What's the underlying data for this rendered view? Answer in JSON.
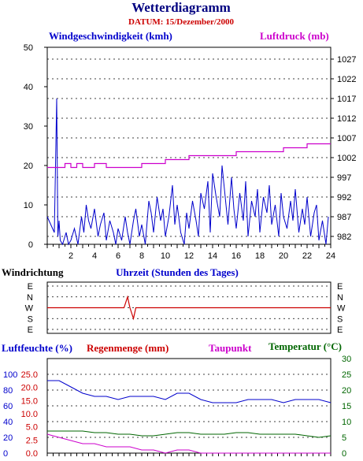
{
  "title": "Wetterdiagramm",
  "subtitle": "DATUM: 15/Dezember/2000",
  "colors": {
    "wind": "#0000cc",
    "pressure": "#cc00cc",
    "direction": "#cc0000",
    "humidity": "#0000cc",
    "rain": "#cc0000",
    "dewpoint": "#cc00cc",
    "temperature": "#006600",
    "grid": "#000000"
  },
  "chart_data": [
    {
      "type": "line",
      "name_left": "Windgeschwindigkeit (kmh)",
      "name_right": "Luftdruck (mb)",
      "xlabel": "Uhrzeit (Stunden des Tages)",
      "x_ticks": [
        "2",
        "4",
        "6",
        "8",
        "10",
        "12",
        "14",
        "16",
        "18",
        "20",
        "22",
        "24"
      ],
      "xlim": [
        0,
        24
      ],
      "y_left_ticks": [
        "0",
        "10",
        "20",
        "30",
        "40",
        "50"
      ],
      "ylim_left": [
        0,
        50
      ],
      "y_right_ticks": [
        "982",
        "987",
        "992",
        "997",
        "1002",
        "1007",
        "1012",
        "1017",
        "1022",
        "1027"
      ],
      "ylim_right": [
        980,
        1030
      ],
      "grid": true,
      "series": [
        {
          "name": "Windgeschwindigkeit (kmh)",
          "axis": "left",
          "x": [
            0,
            0.3,
            0.6,
            0.8,
            0.9,
            1.0,
            1.1,
            1.3,
            1.6,
            1.8,
            2.0,
            2.3,
            2.6,
            2.9,
            3.1,
            3.3,
            3.5,
            3.7,
            4.0,
            4.3,
            4.5,
            4.8,
            5.0,
            5.3,
            5.6,
            5.8,
            6.0,
            6.3,
            6.6,
            6.8,
            7.0,
            7.3,
            7.5,
            7.8,
            8.0,
            8.3,
            8.6,
            8.8,
            9.0,
            9.3,
            9.6,
            9.8,
            10.0,
            10.3,
            10.6,
            10.8,
            11.0,
            11.3,
            11.6,
            11.8,
            12.0,
            12.3,
            12.6,
            12.8,
            13.0,
            13.3,
            13.6,
            13.8,
            14.0,
            14.3,
            14.6,
            14.8,
            15.0,
            15.3,
            15.6,
            15.8,
            16.0,
            16.3,
            16.6,
            16.8,
            17.0,
            17.3,
            17.6,
            17.8,
            18.0,
            18.3,
            18.6,
            18.8,
            19.0,
            19.3,
            19.6,
            19.8,
            20.0,
            20.3,
            20.6,
            20.8,
            21.0,
            21.3,
            21.6,
            21.8,
            22.0,
            22.3,
            22.6,
            22.8,
            23.0,
            23.3,
            23.6,
            23.8
          ],
          "values": [
            7,
            5,
            3,
            37,
            2,
            6,
            1,
            0,
            3,
            0,
            1,
            4,
            0,
            7,
            3,
            10,
            6,
            4,
            9,
            2,
            5,
            8,
            1,
            6,
            3,
            0,
            4,
            1,
            7,
            3,
            0,
            6,
            9,
            2,
            5,
            0,
            11,
            8,
            3,
            12,
            6,
            9,
            2,
            7,
            15,
            5,
            10,
            3,
            0,
            8,
            4,
            11,
            6,
            2,
            13,
            9,
            16,
            3,
            18,
            12,
            7,
            20,
            14,
            5,
            17,
            9,
            4,
            13,
            6,
            16,
            2,
            11,
            7,
            14,
            3,
            12,
            8,
            15,
            5,
            10,
            2,
            13,
            7,
            4,
            11,
            6,
            14,
            3,
            9,
            5,
            12,
            2,
            8,
            10,
            1,
            6,
            0,
            7
          ]
        },
        {
          "name": "Luftdruck (mb)",
          "axis": "right",
          "x": [
            0,
            1,
            1.5,
            2,
            2.5,
            3,
            4,
            5,
            6,
            7,
            8,
            9,
            10,
            11,
            12,
            13,
            14,
            15,
            16,
            17,
            18,
            19,
            20,
            21,
            22,
            23,
            24
          ],
          "values": [
            999.5,
            999.5,
            1000.5,
            999.5,
            1000.5,
            999.5,
            1000.5,
            999.5,
            999.5,
            999.5,
            1000.5,
            1000.5,
            1001.5,
            1001.5,
            1002.5,
            1002.5,
            1002.5,
            1002.5,
            1003.5,
            1003.5,
            1003.5,
            1003.5,
            1004.5,
            1004.5,
            1005.5,
            1005.5,
            1005.5
          ]
        }
      ]
    },
    {
      "type": "line",
      "name": "Windrichtung",
      "y_ticks": [
        "E",
        "N",
        "W",
        "S",
        "E"
      ],
      "xlim": [
        0,
        24
      ],
      "series": [
        {
          "name": "Windrichtung",
          "x": [
            0,
            1,
            2,
            3,
            4,
            5,
            6,
            6.5,
            6.8,
            7,
            7.3,
            7.5,
            7.8,
            8,
            9,
            10,
            11,
            12,
            13,
            14,
            15,
            16,
            17,
            18,
            19,
            20,
            21,
            22,
            22.5,
            23,
            24
          ],
          "values": [
            "W",
            "W",
            "W",
            "W",
            "W",
            "W",
            "W",
            "W",
            "N",
            "W",
            "S",
            "W",
            "W",
            "W",
            "W",
            "W",
            "W",
            "W",
            "W",
            "W",
            "W",
            "W",
            "W",
            "W",
            "W",
            "W",
            "W",
            "W",
            "W",
            "W",
            "W"
          ]
        }
      ]
    },
    {
      "type": "line",
      "label_humidity": "Luftfeuchte (%)",
      "label_rain": "Regenmenge (mm)",
      "label_dewpoint": "Taupunkt",
      "label_temperature": "Temperatur (°C)",
      "y_ticks_humidity": [
        "0",
        "20",
        "40",
        "60",
        "80",
        "100"
      ],
      "y_ticks_rain": [
        "0.0",
        "2.5",
        "5.0",
        "7.5",
        "10.0",
        "15.0",
        "20.0",
        "25.0"
      ],
      "y_ticks_temp": [
        "0",
        "5",
        "10",
        "15",
        "20",
        "25",
        "30"
      ],
      "ylim_temp": [
        0,
        30
      ],
      "xlim": [
        0,
        24
      ],
      "series": [
        {
          "name": "Luftfeuchte (%)",
          "x": [
            0,
            1,
            2,
            3,
            4,
            5,
            6,
            7,
            8,
            9,
            10,
            11,
            12,
            13,
            14,
            15,
            16,
            17,
            18,
            19,
            20,
            21,
            22,
            23,
            24
          ],
          "values": [
            23,
            23,
            21,
            19,
            18,
            18,
            17,
            18,
            18,
            18,
            17,
            19,
            19,
            17,
            16,
            16,
            16,
            17,
            17,
            17,
            16,
            17,
            17,
            17,
            16
          ]
        },
        {
          "name": "Taupunkt",
          "x": [
            0,
            1,
            2,
            3,
            4,
            5,
            6,
            7,
            8,
            9,
            10,
            11,
            12,
            13,
            14,
            15,
            16,
            17,
            18,
            19,
            20,
            21,
            22,
            23,
            24
          ],
          "values": [
            6,
            5,
            4,
            3,
            3,
            2,
            2,
            2,
            1,
            1,
            0,
            1,
            1,
            0,
            0,
            0,
            0,
            0,
            0,
            0,
            0,
            0,
            0,
            0,
            0
          ]
        },
        {
          "name": "Temperatur (°C)",
          "x": [
            0,
            1,
            2,
            3,
            4,
            5,
            6,
            7,
            8,
            9,
            10,
            11,
            12,
            13,
            14,
            15,
            16,
            17,
            18,
            19,
            20,
            21,
            22,
            23,
            24
          ],
          "values": [
            7,
            7,
            7,
            7,
            6.5,
            6.5,
            6,
            6,
            5.5,
            5.5,
            6,
            6.5,
            6.5,
            6,
            6,
            6,
            6.5,
            6.5,
            6,
            6,
            6,
            6,
            5.5,
            5,
            5.5
          ]
        }
      ]
    }
  ]
}
